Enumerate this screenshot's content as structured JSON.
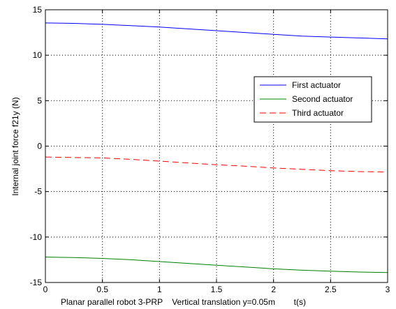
{
  "chart_data": {
    "type": "line",
    "xlabel": "Planar parallel robot 3-PRP    Vertical translation y=0.05m        t(s)",
    "ylabel": "Internal joint force f21y (N)",
    "xlim": [
      0,
      3
    ],
    "ylim": [
      -15,
      15
    ],
    "x_ticks": [
      "0",
      "0.5",
      "1",
      "1.5",
      "2",
      "2.5",
      "3"
    ],
    "y_ticks": [
      "15",
      "10",
      "5",
      "0",
      "-5",
      "-10",
      "-15"
    ],
    "grid": true,
    "grid_style": "dotted",
    "legend_position": "right",
    "x": [
      0,
      0.25,
      0.5,
      0.75,
      1.0,
      1.25,
      1.5,
      1.75,
      2.0,
      2.25,
      2.5,
      2.75,
      3.0
    ],
    "series": [
      {
        "name": "First actuator",
        "color": "#0000ff",
        "dash": "solid",
        "values": [
          13.55,
          13.5,
          13.4,
          13.25,
          13.1,
          12.9,
          12.7,
          12.5,
          12.3,
          12.1,
          12.0,
          11.9,
          11.8
        ]
      },
      {
        "name": "Second actuator",
        "color": "#008000",
        "dash": "solid",
        "values": [
          -12.2,
          -12.25,
          -12.35,
          -12.5,
          -12.7,
          -12.9,
          -13.1,
          -13.3,
          -13.5,
          -13.65,
          -13.75,
          -13.85,
          -13.9
        ]
      },
      {
        "name": "Third actuator",
        "color": "#ff0000",
        "dash": "dashed",
        "values": [
          -1.2,
          -1.25,
          -1.3,
          -1.45,
          -1.65,
          -1.85,
          -2.05,
          -2.2,
          -2.4,
          -2.55,
          -2.7,
          -2.8,
          -2.85
        ]
      }
    ]
  }
}
